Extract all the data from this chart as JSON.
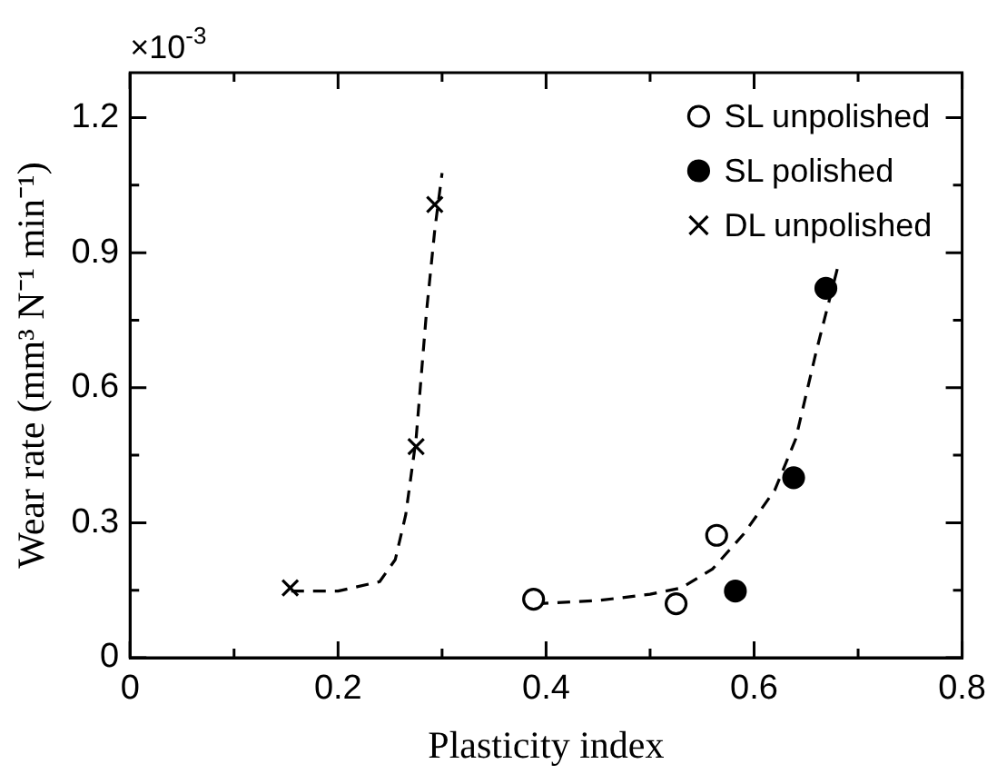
{
  "chart_data": {
    "type": "scatter",
    "xlabel": "Plasticity index",
    "ylabel": "Wear rate (mm³ N⁻¹ min⁻¹)",
    "annotations": [
      "×10$^{-3}$"
    ],
    "xlim": [
      0,
      0.8
    ],
    "xticks": [
      0,
      {
        "value": 0.1,
        "label": null
      },
      0.2,
      {
        "value": 0.3,
        "label": null
      },
      0.4,
      {
        "value": 0.5,
        "label": null
      },
      0.6,
      {
        "value": 0.7,
        "label": null
      },
      0.8
    ],
    "ylim": [
      0,
      1.3
    ],
    "yticks": [
      0,
      {
        "value": 0.15,
        "label": null
      },
      0.3,
      {
        "value": 0.45,
        "label": null
      },
      0.6,
      {
        "value": 0.75,
        "label": null
      },
      0.9,
      {
        "value": 1.05,
        "label": null
      },
      1.2
    ],
    "grid": false,
    "legend": "top right",
    "series": [
      {
        "name": "SL unpolished",
        "marker": "circle",
        "color": "#ffffff",
        "x": [
          0.388,
          0.525,
          0.564
        ],
        "values": [
          0.13,
          0.12,
          0.272
        ]
      },
      {
        "name": "SL polished",
        "marker": "circle",
        "color": "#000000",
        "x": [
          0.582,
          0.638,
          0.669
        ],
        "values": [
          0.148,
          0.4,
          0.821
        ]
      },
      {
        "name": "DL unpolished",
        "marker": "cross",
        "color": "#000000",
        "x": [
          0.154,
          0.275,
          0.293
        ],
        "values": [
          0.155,
          0.469,
          1.007
        ]
      },
      {
        "type": "line",
        "marker": "none",
        "line_style": "dashed",
        "color": "#000000",
        "x": [
          0.155,
          0.2,
          0.24,
          0.255,
          0.265,
          0.275,
          0.285,
          0.293,
          0.3
        ],
        "values": [
          0.148,
          0.148,
          0.169,
          0.218,
          0.317,
          0.486,
          0.768,
          0.951,
          1.077
        ]
      },
      {
        "type": "line",
        "marker": "none",
        "line_style": "dashed",
        "color": "#000000",
        "x": [
          0.39,
          0.45,
          0.5,
          0.53,
          0.56,
          0.59,
          0.62,
          0.64,
          0.66,
          0.681
        ],
        "values": [
          0.12,
          0.127,
          0.141,
          0.155,
          0.197,
          0.275,
          0.373,
          0.486,
          0.683,
          0.873
        ]
      }
    ]
  }
}
